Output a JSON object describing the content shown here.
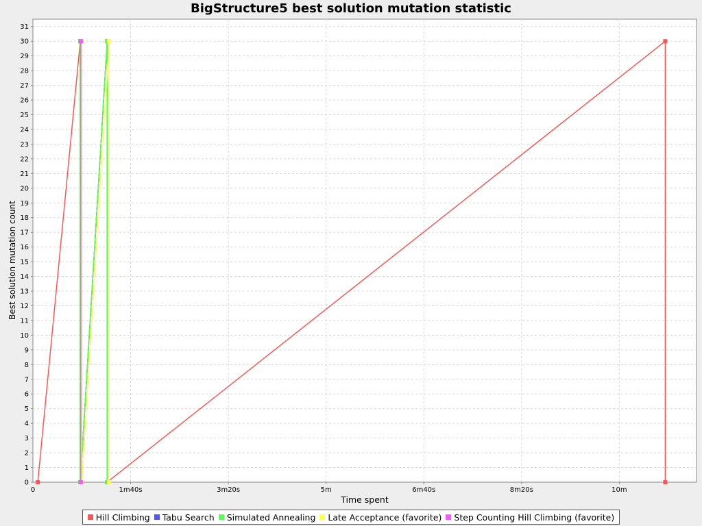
{
  "chart_data": {
    "type": "line",
    "title": "BigStructure5 best solution mutation statistic",
    "xlabel": "Time spent",
    "ylabel": "Best solution mutation count",
    "xlim": [
      0,
      679
    ],
    "ylim": [
      0,
      31.5
    ],
    "x_unit": "seconds",
    "x_ticks": [
      {
        "value": 100,
        "label": "1m40s"
      },
      {
        "value": 200,
        "label": "3m20s"
      },
      {
        "value": 300,
        "label": "5m"
      },
      {
        "value": 400,
        "label": "6m40s"
      },
      {
        "value": 500,
        "label": "8m20s"
      },
      {
        "value": 600,
        "label": "10m"
      }
    ],
    "x_zero_label": "0",
    "y_ticks": [
      0,
      1,
      2,
      3,
      4,
      5,
      6,
      7,
      8,
      9,
      10,
      11,
      12,
      13,
      14,
      15,
      16,
      17,
      18,
      19,
      20,
      21,
      22,
      23,
      24,
      25,
      26,
      27,
      28,
      29,
      30,
      31
    ],
    "grid": true,
    "legend_position": "bottom",
    "series": [
      {
        "name": "Hill Climbing",
        "color": "#ff5555",
        "points": [
          [
            5,
            0
          ],
          [
            48.5,
            30
          ],
          [
            48.5,
            0
          ],
          [
            76,
            30
          ],
          [
            76,
            0
          ],
          [
            647,
            30
          ],
          [
            647,
            0
          ]
        ]
      },
      {
        "name": "Tabu Search",
        "color": "#5555ff",
        "points": [
          [
            48.5,
            30
          ],
          [
            48.5,
            0
          ],
          [
            76,
            30
          ],
          [
            76,
            0
          ]
        ]
      },
      {
        "name": "Simulated Annealing",
        "color": "#55ff55",
        "points": [
          [
            48.5,
            30
          ],
          [
            48.5,
            0
          ],
          [
            76,
            30
          ],
          [
            76,
            0
          ]
        ]
      },
      {
        "name": "Late Acceptance (favorite)",
        "color": "#ffff55",
        "points": [
          [
            50,
            30
          ],
          [
            50,
            0
          ],
          [
            78,
            30
          ],
          [
            78,
            0
          ]
        ]
      },
      {
        "name": "Step Counting Hill Climbing (favorite)",
        "color": "#ff55ff",
        "points": [
          [
            49,
            30
          ],
          [
            49,
            0
          ]
        ]
      }
    ]
  }
}
